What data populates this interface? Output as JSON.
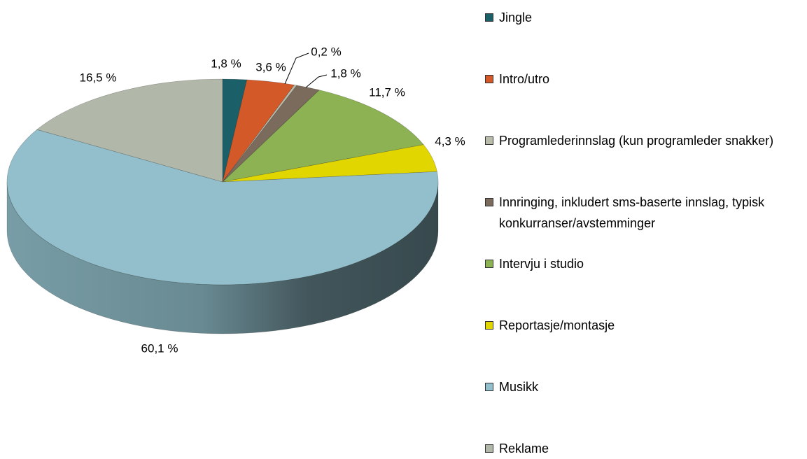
{
  "chart_data": {
    "type": "pie3d",
    "categories": [
      "Jingle",
      "Intro/utro",
      "Programlederinnslag (kun programleder snakker)",
      "Innringing, inkludert sms-baserte innslag, typisk konkurranser/avstemminger",
      "Intervju i studio",
      "Reportasje/montasje",
      "Musikk",
      "Reklame"
    ],
    "values": [
      1.8,
      3.6,
      0.2,
      1.8,
      11.7,
      4.3,
      60.1,
      16.5
    ],
    "value_labels": [
      "1,8 %",
      "3,6 %",
      "0,2 %",
      "1,8 %",
      "11,7 %",
      "4,3 %",
      "60,1 %",
      "16,5 %"
    ],
    "colors": [
      "#1b6068",
      "#d35a28",
      "#b9bcaa",
      "#7b6b5c",
      "#8cb254",
      "#e2d600",
      "#92bfcb",
      "#b2b8a9"
    ],
    "legend": "right"
  }
}
